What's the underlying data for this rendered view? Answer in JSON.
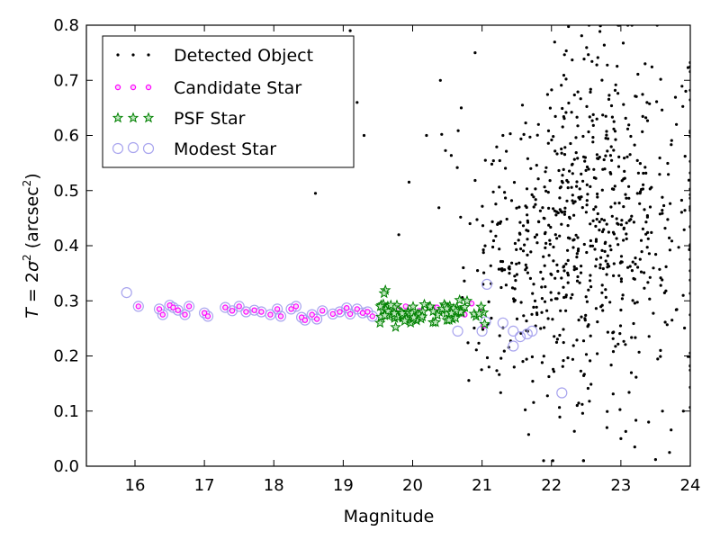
{
  "chart_data": {
    "type": "scatter",
    "title": "",
    "xlabel": "Magnitude",
    "ylabel": {
      "T_symbol": "T",
      "equals": " = 2",
      "sigma_symbol": "σ",
      "sq": "2",
      "unit_open": " (arcsec",
      "unit_sq": "2",
      "unit_close": ")"
    },
    "xlim": [
      15.3,
      24.0
    ],
    "ylim": [
      0.0,
      0.8
    ],
    "xticks": [
      "16",
      "17",
      "18",
      "19",
      "20",
      "21",
      "22",
      "23",
      "24"
    ],
    "yticks": [
      "0.0",
      "0.1",
      "0.2",
      "0.3",
      "0.4",
      "0.5",
      "0.6",
      "0.7",
      "0.8"
    ],
    "xtick_values": [
      16,
      17,
      18,
      19,
      20,
      21,
      22,
      23,
      24
    ],
    "ytick_values": [
      0.0,
      0.1,
      0.2,
      0.3,
      0.4,
      0.5,
      0.6,
      0.7,
      0.8
    ],
    "grid": false,
    "legend_position": "top-left",
    "series": [
      {
        "name": "Detected Object",
        "marker": "dot",
        "color": "#000000",
        "generator": {
          "count": 760,
          "seed": 7,
          "x_center": 22.5,
          "x_spread": 0.85,
          "x_min": 19.3,
          "x_max": 24.0,
          "y_mean_faint": 0.44,
          "y_sd": 0.17,
          "y_min": 0.01,
          "y_max": 0.8
        },
        "points": [
          [
            18.6,
            0.495
          ],
          [
            19.1,
            0.57
          ],
          [
            19.3,
            0.6
          ],
          [
            19.2,
            0.66
          ],
          [
            19.0,
            0.74
          ],
          [
            19.1,
            0.79
          ],
          [
            19.8,
            0.42
          ],
          [
            20.2,
            0.6
          ],
          [
            20.4,
            0.7
          ],
          [
            20.7,
            0.65
          ],
          [
            20.9,
            0.75
          ],
          [
            21.3,
            0.6
          ],
          [
            21.1,
            0.18
          ],
          [
            23.5,
            0.012
          ],
          [
            23.7,
            0.025
          ],
          [
            23.2,
            0.035
          ],
          [
            23.0,
            0.05
          ],
          [
            22.8,
            0.07
          ],
          [
            23.4,
            0.08
          ],
          [
            23.6,
            0.1
          ],
          [
            23.8,
            0.62
          ],
          [
            23.9,
            0.1
          ]
        ]
      },
      {
        "name": "Candidate Star",
        "marker": "circle",
        "color": "#ff00ff",
        "points": [
          [
            16.05,
            0.29
          ],
          [
            16.35,
            0.285
          ],
          [
            16.4,
            0.275
          ],
          [
            16.5,
            0.292
          ],
          [
            16.55,
            0.288
          ],
          [
            16.62,
            0.283
          ],
          [
            16.72,
            0.275
          ],
          [
            16.78,
            0.29
          ],
          [
            17.0,
            0.278
          ],
          [
            17.05,
            0.272
          ],
          [
            17.3,
            0.288
          ],
          [
            17.4,
            0.282
          ],
          [
            17.5,
            0.29
          ],
          [
            17.6,
            0.28
          ],
          [
            17.72,
            0.283
          ],
          [
            17.82,
            0.28
          ],
          [
            17.95,
            0.275
          ],
          [
            18.05,
            0.285
          ],
          [
            18.1,
            0.272
          ],
          [
            18.25,
            0.285
          ],
          [
            18.32,
            0.29
          ],
          [
            18.4,
            0.27
          ],
          [
            18.45,
            0.265
          ],
          [
            18.55,
            0.275
          ],
          [
            18.62,
            0.267
          ],
          [
            18.7,
            0.282
          ],
          [
            18.85,
            0.276
          ],
          [
            18.95,
            0.28
          ],
          [
            19.05,
            0.287
          ],
          [
            19.1,
            0.276
          ],
          [
            19.2,
            0.285
          ],
          [
            19.28,
            0.278
          ],
          [
            19.35,
            0.28
          ],
          [
            19.42,
            0.272
          ],
          [
            19.6,
            0.28
          ],
          [
            19.8,
            0.285
          ],
          [
            19.9,
            0.29
          ],
          [
            20.1,
            0.282
          ],
          [
            20.35,
            0.288
          ],
          [
            20.55,
            0.28
          ],
          [
            20.75,
            0.275
          ],
          [
            20.85,
            0.295
          ],
          [
            21.0,
            0.28
          ],
          [
            21.02,
            0.255
          ]
        ]
      },
      {
        "name": "PSF Star",
        "marker": "star",
        "color": "#008000",
        "generator": {
          "count": 80,
          "seed": 11,
          "x_min": 19.5,
          "x_max": 21.05,
          "y_center": 0.28,
          "y_jitter": 0.011
        }
      },
      {
        "name": "Modest Star",
        "marker": "ring",
        "color": "#a8a4ee",
        "points": [
          [
            15.88,
            0.315
          ],
          [
            16.05,
            0.29
          ],
          [
            16.35,
            0.285
          ],
          [
            16.4,
            0.275
          ],
          [
            16.5,
            0.292
          ],
          [
            16.55,
            0.288
          ],
          [
            16.62,
            0.283
          ],
          [
            16.72,
            0.275
          ],
          [
            16.78,
            0.29
          ],
          [
            17.0,
            0.278
          ],
          [
            17.05,
            0.272
          ],
          [
            17.3,
            0.288
          ],
          [
            17.4,
            0.282
          ],
          [
            17.5,
            0.29
          ],
          [
            17.6,
            0.28
          ],
          [
            17.72,
            0.283
          ],
          [
            17.82,
            0.28
          ],
          [
            17.95,
            0.275
          ],
          [
            18.05,
            0.285
          ],
          [
            18.1,
            0.272
          ],
          [
            18.25,
            0.285
          ],
          [
            18.32,
            0.29
          ],
          [
            18.4,
            0.27
          ],
          [
            18.45,
            0.265
          ],
          [
            18.55,
            0.275
          ],
          [
            18.62,
            0.267
          ],
          [
            18.7,
            0.282
          ],
          [
            18.85,
            0.276
          ],
          [
            18.95,
            0.28
          ],
          [
            19.05,
            0.287
          ],
          [
            19.1,
            0.276
          ],
          [
            19.2,
            0.285
          ],
          [
            19.28,
            0.278
          ],
          [
            19.35,
            0.28
          ],
          [
            19.42,
            0.272
          ],
          [
            20.65,
            0.245
          ],
          [
            21.0,
            0.245
          ],
          [
            21.05,
            0.262
          ],
          [
            21.07,
            0.33
          ],
          [
            21.3,
            0.26
          ],
          [
            21.45,
            0.245
          ],
          [
            21.45,
            0.218
          ],
          [
            21.55,
            0.235
          ],
          [
            21.65,
            0.24
          ],
          [
            21.72,
            0.245
          ],
          [
            22.15,
            0.133
          ]
        ]
      }
    ]
  }
}
